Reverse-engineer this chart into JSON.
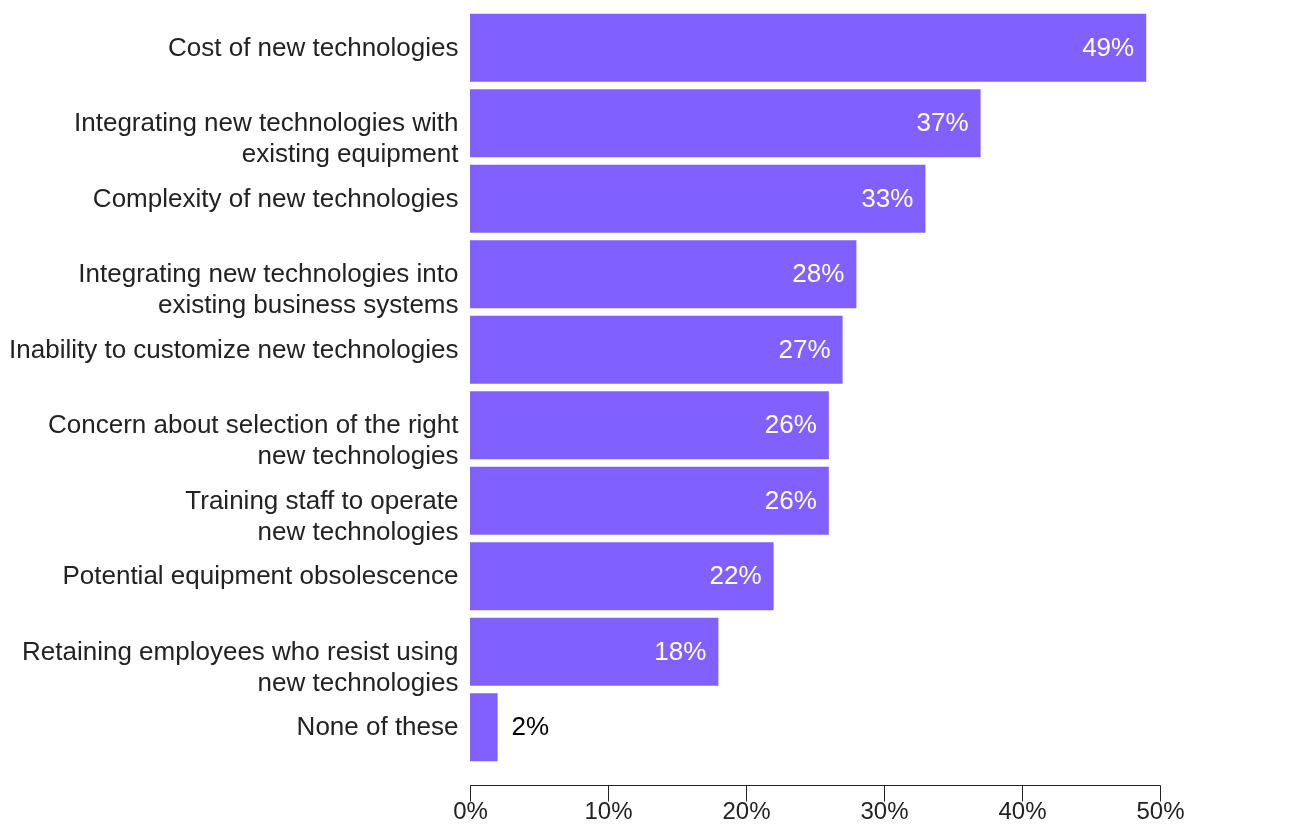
{
  "chart_data": {
    "type": "bar",
    "orientation": "horizontal",
    "categories": [
      "Cost of new technologies",
      "Integrating new technologies with\nexisting equipment",
      "Complexity of new technologies",
      "Integrating new technologies into\nexisting business systems",
      "Inability to customize new technologies",
      "Concern about selection of the right\nnew technologies",
      "Training staff to operate\nnew technologies",
      "Potential equipment obsolescence",
      "Retaining employees who resist using\nnew technologies",
      "None of these"
    ],
    "values": [
      49,
      37,
      33,
      28,
      27,
      26,
      26,
      22,
      18,
      2
    ],
    "value_labels": [
      "49%",
      "37%",
      "33%",
      "28%",
      "27%",
      "26%",
      "26%",
      "22%",
      "18%",
      "2%"
    ],
    "color": "#8061ff",
    "xlim": [
      0,
      50
    ],
    "xticks": [
      {
        "value": 0,
        "label": "0%"
      },
      {
        "value": 10,
        "label": "10%"
      },
      {
        "value": 20,
        "label": "20%"
      },
      {
        "value": 30,
        "label": "30%"
      },
      {
        "value": 40,
        "label": "40%"
      },
      {
        "value": 50,
        "label": "50%"
      }
    ],
    "grid": false
  }
}
